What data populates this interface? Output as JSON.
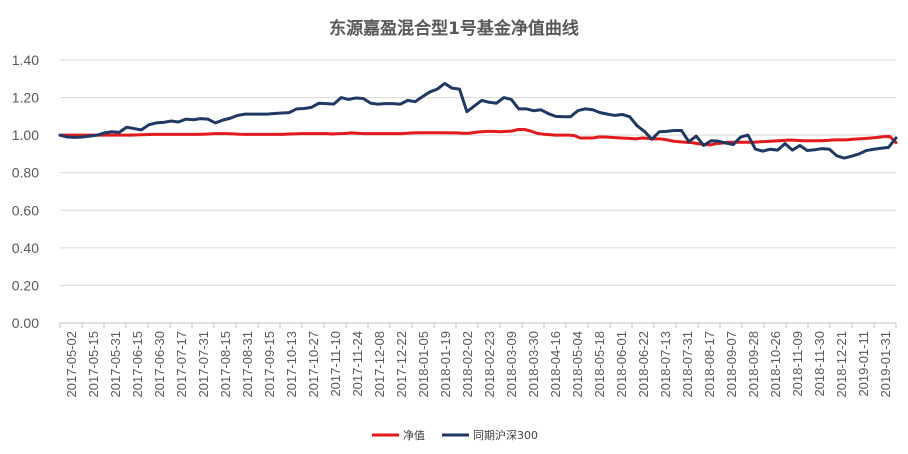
{
  "chart_data": {
    "type": "line",
    "title": "东源嘉盈混合型1号基金净值曲线",
    "xlabel": "",
    "ylabel": "",
    "ylim": [
      0,
      1.4
    ],
    "yticks": [
      "0.00",
      "0.20",
      "0.40",
      "0.60",
      "0.80",
      "1.00",
      "1.20",
      "1.40"
    ],
    "grid": true,
    "legend_position": "bottom",
    "x_tick_labels": [
      "2017-05-02",
      "2017-05-15",
      "2017-05-31",
      "2017-06-15",
      "2017-06-30",
      "2017-07-17",
      "2017-07-31",
      "2017-08-15",
      "2017-08-31",
      "2017-09-15",
      "2017-10-13",
      "2017-10-27",
      "2017-11-10",
      "2017-11-24",
      "2017-12-08",
      "2017-12-22",
      "2018-01-05",
      "2018-01-19",
      "2018-02-02",
      "2018-02-23",
      "2018-03-09",
      "2018-03-30",
      "2018-04-16",
      "2018-05-04",
      "2018-05-18",
      "2018-06-01",
      "2018-06-22",
      "2018-07-13",
      "2018-07-31",
      "2018-08-17",
      "2018-09-07",
      "2018-09-28",
      "2018-10-26",
      "2018-11-09",
      "2018-11-30",
      "2018-12-21",
      "2019-01-11",
      "2019-01-31"
    ],
    "series": [
      {
        "name": "净值",
        "color": "#e31a1c",
        "values": [
          1.0,
          1.0,
          1.0,
          1.0,
          1.0,
          1.0,
          1.0,
          1.0,
          1.0,
          1.0,
          1.0,
          1.0,
          1.001,
          1.002,
          1.003,
          1.004,
          1.004,
          1.004,
          1.004,
          1.004,
          1.004,
          1.004,
          1.004,
          1.005,
          1.006,
          1.008,
          1.008,
          1.008,
          1.007,
          1.005,
          1.004,
          1.004,
          1.004,
          1.004,
          1.004,
          1.004,
          1.004,
          1.006,
          1.007,
          1.008,
          1.008,
          1.008,
          1.008,
          1.008,
          1.006,
          1.008,
          1.009,
          1.012,
          1.01,
          1.008,
          1.008,
          1.008,
          1.008,
          1.008,
          1.008,
          1.008,
          1.01,
          1.012,
          1.013,
          1.013,
          1.013,
          1.013,
          1.013,
          1.012,
          1.012,
          1.01,
          1.01,
          1.015,
          1.018,
          1.02,
          1.02,
          1.018,
          1.02,
          1.022,
          1.03,
          1.03,
          1.022,
          1.01,
          1.005,
          1.003,
          1.0,
          1.0,
          1.0,
          0.998,
          0.985,
          0.985,
          0.985,
          0.99,
          0.99,
          0.988,
          0.986,
          0.984,
          0.983,
          0.98,
          0.985,
          0.983,
          0.98,
          0.98,
          0.975,
          0.968,
          0.965,
          0.962,
          0.96,
          0.955,
          0.95,
          0.948,
          0.955,
          0.958,
          0.962,
          0.962,
          0.962,
          0.962,
          0.962,
          0.965,
          0.966,
          0.968,
          0.97,
          0.972,
          0.974,
          0.972,
          0.97,
          0.97,
          0.97,
          0.97,
          0.972,
          0.975,
          0.975,
          0.975,
          0.978,
          0.98,
          0.982,
          0.985,
          0.988,
          0.992,
          0.993,
          0.96
        ]
      },
      {
        "name": "同期沪深300",
        "color": "#1f3864",
        "values": [
          1.0,
          0.99,
          0.988,
          0.99,
          0.995,
          1.0,
          1.012,
          1.018,
          1.015,
          1.042,
          1.035,
          1.028,
          1.055,
          1.065,
          1.068,
          1.075,
          1.07,
          1.085,
          1.082,
          1.088,
          1.085,
          1.065,
          1.08,
          1.09,
          1.105,
          1.112,
          1.112,
          1.112,
          1.112,
          1.115,
          1.118,
          1.12,
          1.14,
          1.142,
          1.148,
          1.17,
          1.168,
          1.165,
          1.2,
          1.19,
          1.198,
          1.195,
          1.17,
          1.165,
          1.168,
          1.168,
          1.165,
          1.185,
          1.178,
          1.205,
          1.23,
          1.245,
          1.275,
          1.25,
          1.245,
          1.125,
          1.155,
          1.185,
          1.175,
          1.17,
          1.2,
          1.19,
          1.14,
          1.14,
          1.13,
          1.135,
          1.115,
          1.1,
          1.098,
          1.098,
          1.13,
          1.14,
          1.135,
          1.12,
          1.112,
          1.105,
          1.11,
          1.098,
          1.05,
          1.02,
          0.978,
          1.018,
          1.02,
          1.025,
          1.025,
          0.965,
          0.995,
          0.945,
          0.97,
          0.968,
          0.958,
          0.95,
          0.99,
          1.0,
          0.925,
          0.915,
          0.925,
          0.92,
          0.955,
          0.92,
          0.945,
          0.918,
          0.922,
          0.928,
          0.925,
          0.89,
          0.878,
          0.888,
          0.9,
          0.918,
          0.925,
          0.93,
          0.935,
          0.985
        ]
      }
    ]
  }
}
